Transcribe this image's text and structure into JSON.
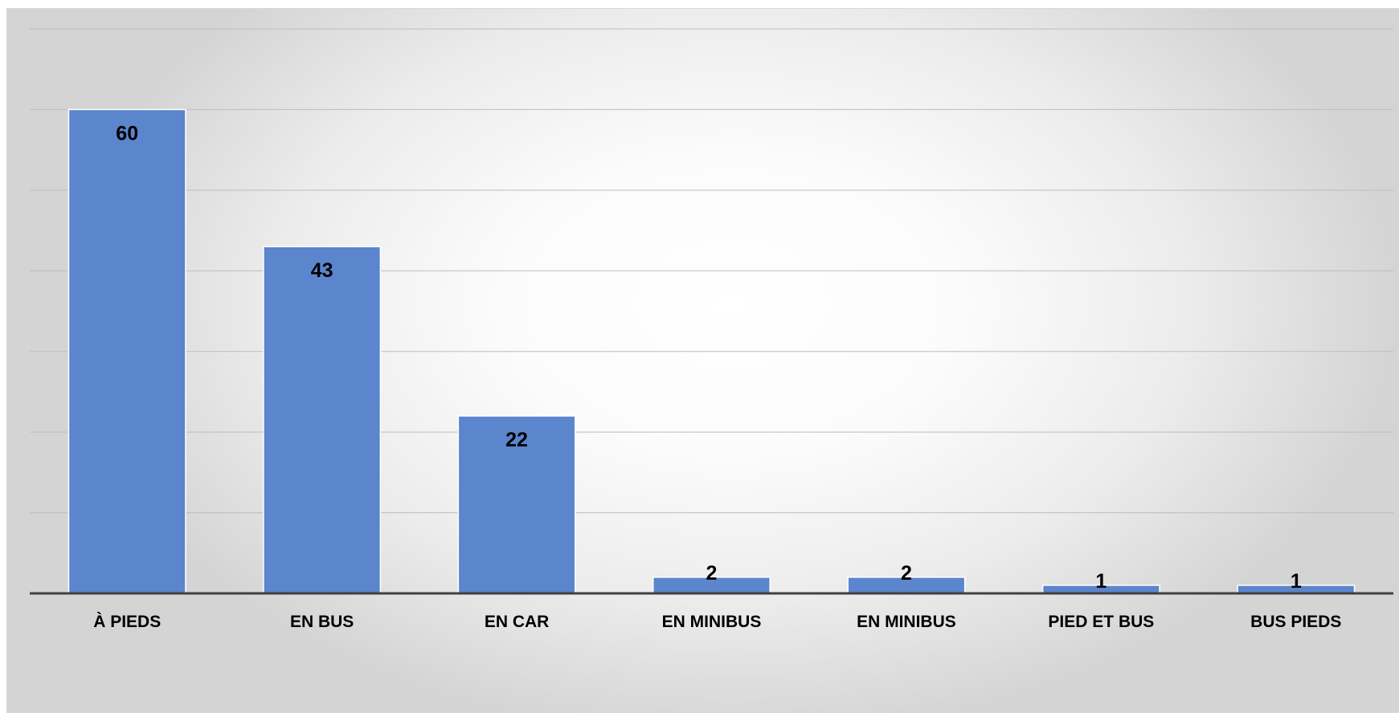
{
  "chart_data": {
    "type": "bar",
    "categories": [
      "À PIEDS",
      "EN BUS",
      "EN CAR",
      "EN MINIBUS",
      "EN MINIBUS",
      "PIED ET BUS",
      "BUS PIEDS"
    ],
    "values": [
      60,
      43,
      22,
      2,
      2,
      1,
      1
    ],
    "data_labels": [
      "60",
      "43",
      "22",
      "2",
      "2",
      "1",
      "1"
    ],
    "title": "",
    "xlabel": "",
    "ylabel": "",
    "ylim": [
      0,
      70
    ],
    "grid": true,
    "legend": "none",
    "bar_color": "#5b85cc"
  }
}
